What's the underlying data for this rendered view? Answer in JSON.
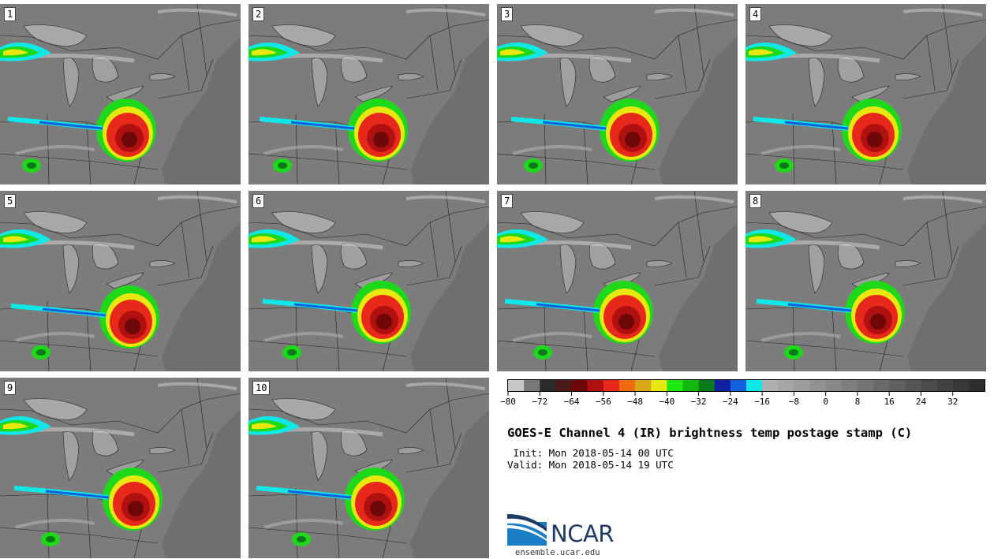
{
  "panels": [
    {
      "label": "1"
    },
    {
      "label": "2"
    },
    {
      "label": "3"
    },
    {
      "label": "4"
    },
    {
      "label": "5"
    },
    {
      "label": "6"
    },
    {
      "label": "7"
    },
    {
      "label": "8"
    },
    {
      "label": "9"
    },
    {
      "label": "10"
    }
  ],
  "colorbar": {
    "min": -80,
    "max": 40,
    "step": 4,
    "colors": [
      "#c8c8c8",
      "#787878",
      "#2b2b2b",
      "#4a1a1a",
      "#6e0808",
      "#b01010",
      "#e8281a",
      "#f06a10",
      "#d8a818",
      "#e8e810",
      "#1ee810",
      "#10b810",
      "#0a7a1a",
      "#1020a0",
      "#1060e0",
      "#10e8e8",
      "#b0b0b0",
      "#a6a6a6",
      "#9c9c9c",
      "#929292",
      "#888888",
      "#7e7e7e",
      "#747474",
      "#6a6a6a",
      "#606060",
      "#565656",
      "#4c4c4c",
      "#424242",
      "#383838",
      "#2e2e2e"
    ],
    "tick_labels": [
      "−80",
      "−72",
      "−64",
      "−56",
      "−48",
      "−40",
      "−32",
      "−24",
      "−16",
      "−8",
      "0",
      "8",
      "16",
      "24",
      "32"
    ]
  },
  "title": "GOES-E Channel 4 (IR) brightness temp postage stamp (C)",
  "init_line": " Init: Mon 2018-05-14 00 UTC",
  "valid_line": "Valid: Mon 2018-05-14 19 UTC",
  "logo_text": "NCAR",
  "site": "ensemble.ucar.edu",
  "colors": {
    "background": "#ffffff",
    "ocean": "#6f6f6f",
    "land": "#7c7c7c"
  }
}
